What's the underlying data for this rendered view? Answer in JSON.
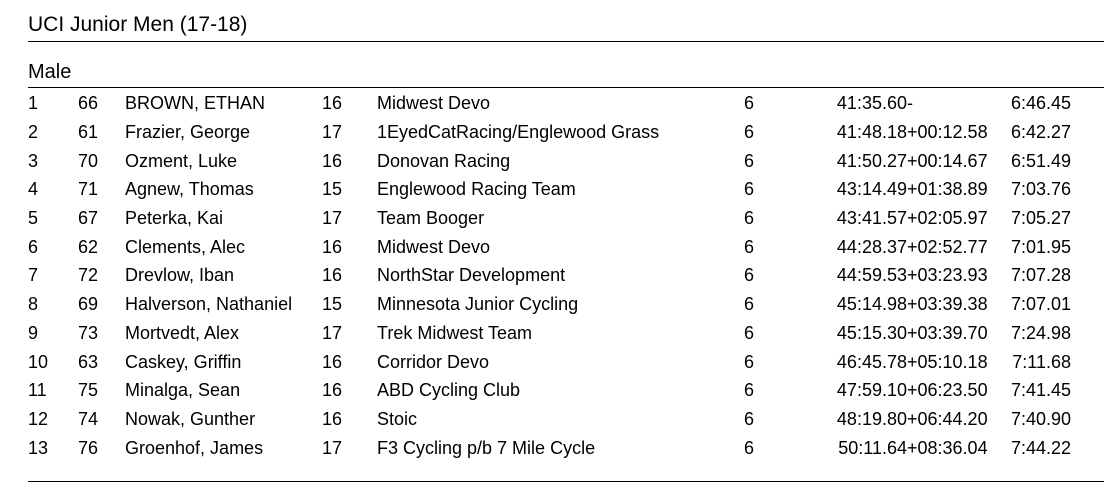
{
  "category_title": "UCI Junior Men (17-18)",
  "gender_title": "Male",
  "results": [
    {
      "place": "1",
      "bib": "66",
      "name": "BROWN, ETHAN",
      "age": "16",
      "team": "Midwest Devo",
      "laps": "6",
      "time": "41:35.60",
      "gap": "-",
      "best_lap": "6:46.45"
    },
    {
      "place": "2",
      "bib": "61",
      "name": "Frazier, George",
      "age": "17",
      "team": "1EyedCatRacing/Englewood Grass",
      "laps": "6",
      "time": "41:48.18",
      "gap": "+00:12.58",
      "best_lap": "6:42.27"
    },
    {
      "place": "3",
      "bib": "70",
      "name": "Ozment, Luke",
      "age": "16",
      "team": "Donovan Racing",
      "laps": "6",
      "time": "41:50.27",
      "gap": "+00:14.67",
      "best_lap": "6:51.49"
    },
    {
      "place": "4",
      "bib": "71",
      "name": "Agnew, Thomas",
      "age": "15",
      "team": "Englewood Racing Team",
      "laps": "6",
      "time": "43:14.49",
      "gap": "+01:38.89",
      "best_lap": "7:03.76"
    },
    {
      "place": "5",
      "bib": "67",
      "name": "Peterka, Kai",
      "age": "17",
      "team": "Team Booger",
      "laps": "6",
      "time": "43:41.57",
      "gap": "+02:05.97",
      "best_lap": "7:05.27"
    },
    {
      "place": "6",
      "bib": "62",
      "name": "Clements, Alec",
      "age": "16",
      "team": "Midwest Devo",
      "laps": "6",
      "time": "44:28.37",
      "gap": "+02:52.77",
      "best_lap": "7:01.95"
    },
    {
      "place": "7",
      "bib": "72",
      "name": "Drevlow, Iban",
      "age": "16",
      "team": "NorthStar Development",
      "laps": "6",
      "time": "44:59.53",
      "gap": "+03:23.93",
      "best_lap": "7:07.28"
    },
    {
      "place": "8",
      "bib": "69",
      "name": "Halverson, Nathaniel",
      "age": "15",
      "team": "Minnesota Junior Cycling",
      "laps": "6",
      "time": "45:14.98",
      "gap": "+03:39.38",
      "best_lap": "7:07.01"
    },
    {
      "place": "9",
      "bib": "73",
      "name": "Mortvedt, Alex",
      "age": "17",
      "team": "Trek Midwest Team",
      "laps": "6",
      "time": "45:15.30",
      "gap": "+03:39.70",
      "best_lap": "7:24.98"
    },
    {
      "place": "10",
      "bib": "63",
      "name": "Caskey, Griffin",
      "age": "16",
      "team": "Corridor Devo",
      "laps": "6",
      "time": "46:45.78",
      "gap": "+05:10.18",
      "best_lap": "7:11.68"
    },
    {
      "place": "11",
      "bib": "75",
      "name": "Minalga, Sean",
      "age": "16",
      "team": "ABD Cycling Club",
      "laps": "6",
      "time": "47:59.10",
      "gap": "+06:23.50",
      "best_lap": "7:41.45"
    },
    {
      "place": "12",
      "bib": "74",
      "name": "Nowak, Gunther",
      "age": "16",
      "team": "Stoic",
      "laps": "6",
      "time": "48:19.80",
      "gap": "+06:44.20",
      "best_lap": "7:40.90"
    },
    {
      "place": "13",
      "bib": "76",
      "name": "Groenhof, James",
      "age": "17",
      "team": "F3 Cycling p/b 7 Mile Cycle",
      "laps": "6",
      "time": "50:11.64",
      "gap": "+08:36.04",
      "best_lap": "7:44.22"
    }
  ]
}
